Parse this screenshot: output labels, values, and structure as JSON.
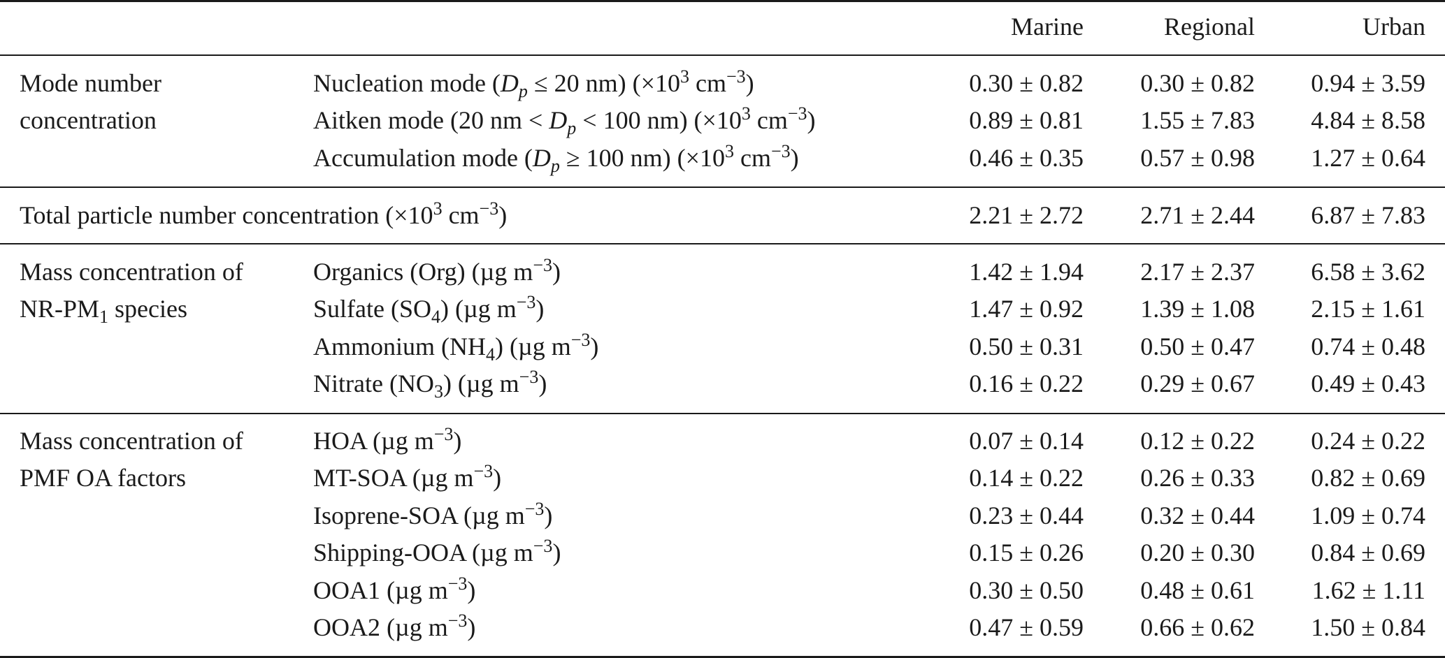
{
  "header": {
    "columns": [
      "Marine",
      "Regional",
      "Urban"
    ]
  },
  "groups": [
    {
      "label_lines": [
        "Mode number",
        "concentration"
      ],
      "rows": [
        {
          "label": "Nucleation mode (Dp ≤ 20 nm) (×10³ cm⁻³)",
          "marine": "0.30 ± 0.82",
          "regional": "0.30 ± 0.82",
          "urban": "0.94 ± 3.59"
        },
        {
          "label": "Aitken mode (20 nm < Dp < 100 nm) (×10³ cm⁻³)",
          "marine": "0.89 ± 0.81",
          "regional": "1.55 ± 7.83",
          "urban": "4.84 ± 8.58"
        },
        {
          "label": "Accumulation mode (Dp ≥ 100 nm) (×10³ cm⁻³)",
          "marine": "0.46 ± 0.35",
          "regional": "0.57 ± 0.98",
          "urban": "1.27 ± 0.64"
        }
      ]
    },
    {
      "label_lines": [
        "Total particle number concentration (×10³ cm⁻³)"
      ],
      "rows": [
        {
          "label": "",
          "marine": "2.21 ± 2.72",
          "regional": "2.71 ± 2.44",
          "urban": "6.87 ± 7.83"
        }
      ]
    },
    {
      "label_lines": [
        "Mass concentration of",
        "NR-PM1 species"
      ],
      "rows": [
        {
          "label": "Organics (Org) (µg m⁻³)",
          "marine": "1.42 ± 1.94",
          "regional": "2.17 ± 2.37",
          "urban": "6.58 ± 3.62"
        },
        {
          "label": "Sulfate (SO4) (µg m⁻³)",
          "marine": "1.47 ± 0.92",
          "regional": "1.39 ± 1.08",
          "urban": "2.15 ± 1.61"
        },
        {
          "label": "Ammonium (NH4) (µg m⁻³)",
          "marine": "0.50 ± 0.31",
          "regional": "0.50 ± 0.47",
          "urban": "0.74 ± 0.48"
        },
        {
          "label": "Nitrate (NO3) (µg m⁻³)",
          "marine": "0.16 ± 0.22",
          "regional": "0.29 ± 0.67",
          "urban": "0.49 ± 0.43"
        }
      ]
    },
    {
      "label_lines": [
        "Mass concentration of",
        "PMF OA factors"
      ],
      "rows": [
        {
          "label": "HOA (µg m⁻³)",
          "marine": "0.07 ± 0.14",
          "regional": "0.12 ± 0.22",
          "urban": "0.24 ± 0.22"
        },
        {
          "label": "MT-SOA (µg m⁻³)",
          "marine": "0.14 ± 0.22",
          "regional": "0.26 ± 0.33",
          "urban": "0.82 ± 0.69"
        },
        {
          "label": "Isoprene-SOA (µg m⁻³)",
          "marine": "0.23 ± 0.44",
          "regional": "0.32 ± 0.44",
          "urban": "1.09 ± 0.74"
        },
        {
          "label": "Shipping-OOA (µg m⁻³)",
          "marine": "0.15 ± 0.26",
          "regional": "0.20 ± 0.30",
          "urban": "0.84 ± 0.69"
        },
        {
          "label": "OOA1 (µg m⁻³)",
          "marine": "0.30 ± 0.50",
          "regional": "0.48 ± 0.61",
          "urban": "1.62 ± 1.11"
        },
        {
          "label": "OOA2 (µg m⁻³)",
          "marine": "0.47 ± 0.59",
          "regional": "0.66 ± 0.62",
          "urban": "1.50 ± 0.84"
        }
      ]
    }
  ]
}
